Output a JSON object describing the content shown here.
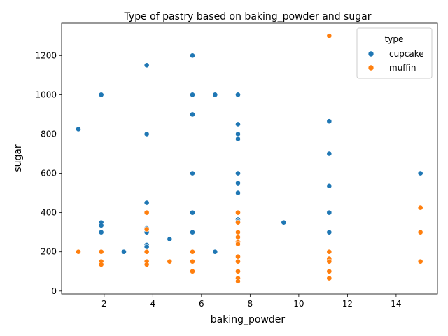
{
  "chart_data": {
    "type": "scatter",
    "title": "Type of pastry based on baking_powder and sugar",
    "xlabel": "baking_powder",
    "ylabel": "sugar",
    "xlim": [
      0.25,
      15.7
    ],
    "ylim": [
      -15,
      1365
    ],
    "xticks": [
      2,
      4,
      6,
      8,
      10,
      12,
      14
    ],
    "yticks": [
      0,
      200,
      400,
      600,
      800,
      1000,
      1200
    ],
    "grid": false,
    "legend": {
      "title": "type",
      "placement": "top-right"
    },
    "series": [
      {
        "name": "cupcake",
        "color": "#1f77b4",
        "points": [
          [
            0.94,
            825
          ],
          [
            1.88,
            1000
          ],
          [
            1.88,
            350
          ],
          [
            1.88,
            335
          ],
          [
            1.88,
            300
          ],
          [
            2.81,
            200
          ],
          [
            3.75,
            1150
          ],
          [
            3.75,
            800
          ],
          [
            3.75,
            450
          ],
          [
            3.75,
            320
          ],
          [
            3.75,
            300
          ],
          [
            3.75,
            235
          ],
          [
            3.75,
            225
          ],
          [
            4.69,
            265
          ],
          [
            5.63,
            1200
          ],
          [
            5.63,
            1000
          ],
          [
            5.63,
            900
          ],
          [
            5.63,
            600
          ],
          [
            5.63,
            400
          ],
          [
            5.63,
            300
          ],
          [
            6.56,
            1000
          ],
          [
            6.56,
            200
          ],
          [
            7.5,
            1000
          ],
          [
            7.5,
            850
          ],
          [
            7.5,
            800
          ],
          [
            7.5,
            775
          ],
          [
            7.5,
            600
          ],
          [
            7.5,
            550
          ],
          [
            7.5,
            500
          ],
          [
            7.5,
            365
          ],
          [
            7.5,
            355
          ],
          [
            9.38,
            350
          ],
          [
            11.25,
            865
          ],
          [
            11.25,
            700
          ],
          [
            11.25,
            535
          ],
          [
            11.25,
            400
          ],
          [
            11.25,
            300
          ],
          [
            15.0,
            600
          ]
        ]
      },
      {
        "name": "muffin",
        "color": "#ff7f0e",
        "points": [
          [
            0.94,
            200
          ],
          [
            1.88,
            200
          ],
          [
            1.88,
            150
          ],
          [
            1.88,
            135
          ],
          [
            3.75,
            400
          ],
          [
            3.75,
            315
          ],
          [
            3.75,
            200
          ],
          [
            3.75,
            150
          ],
          [
            3.75,
            135
          ],
          [
            4.69,
            150
          ],
          [
            5.63,
            200
          ],
          [
            5.63,
            150
          ],
          [
            5.63,
            100
          ],
          [
            7.5,
            400
          ],
          [
            7.5,
            350
          ],
          [
            7.5,
            300
          ],
          [
            7.5,
            275
          ],
          [
            7.5,
            250
          ],
          [
            7.5,
            240
          ],
          [
            7.5,
            175
          ],
          [
            7.5,
            150
          ],
          [
            7.5,
            100
          ],
          [
            7.5,
            65
          ],
          [
            7.5,
            50
          ],
          [
            11.25,
            1300
          ],
          [
            11.25,
            200
          ],
          [
            11.25,
            165
          ],
          [
            11.25,
            150
          ],
          [
            11.25,
            100
          ],
          [
            11.25,
            65
          ],
          [
            15.0,
            425
          ],
          [
            15.0,
            300
          ],
          [
            15.0,
            150
          ]
        ]
      }
    ]
  }
}
